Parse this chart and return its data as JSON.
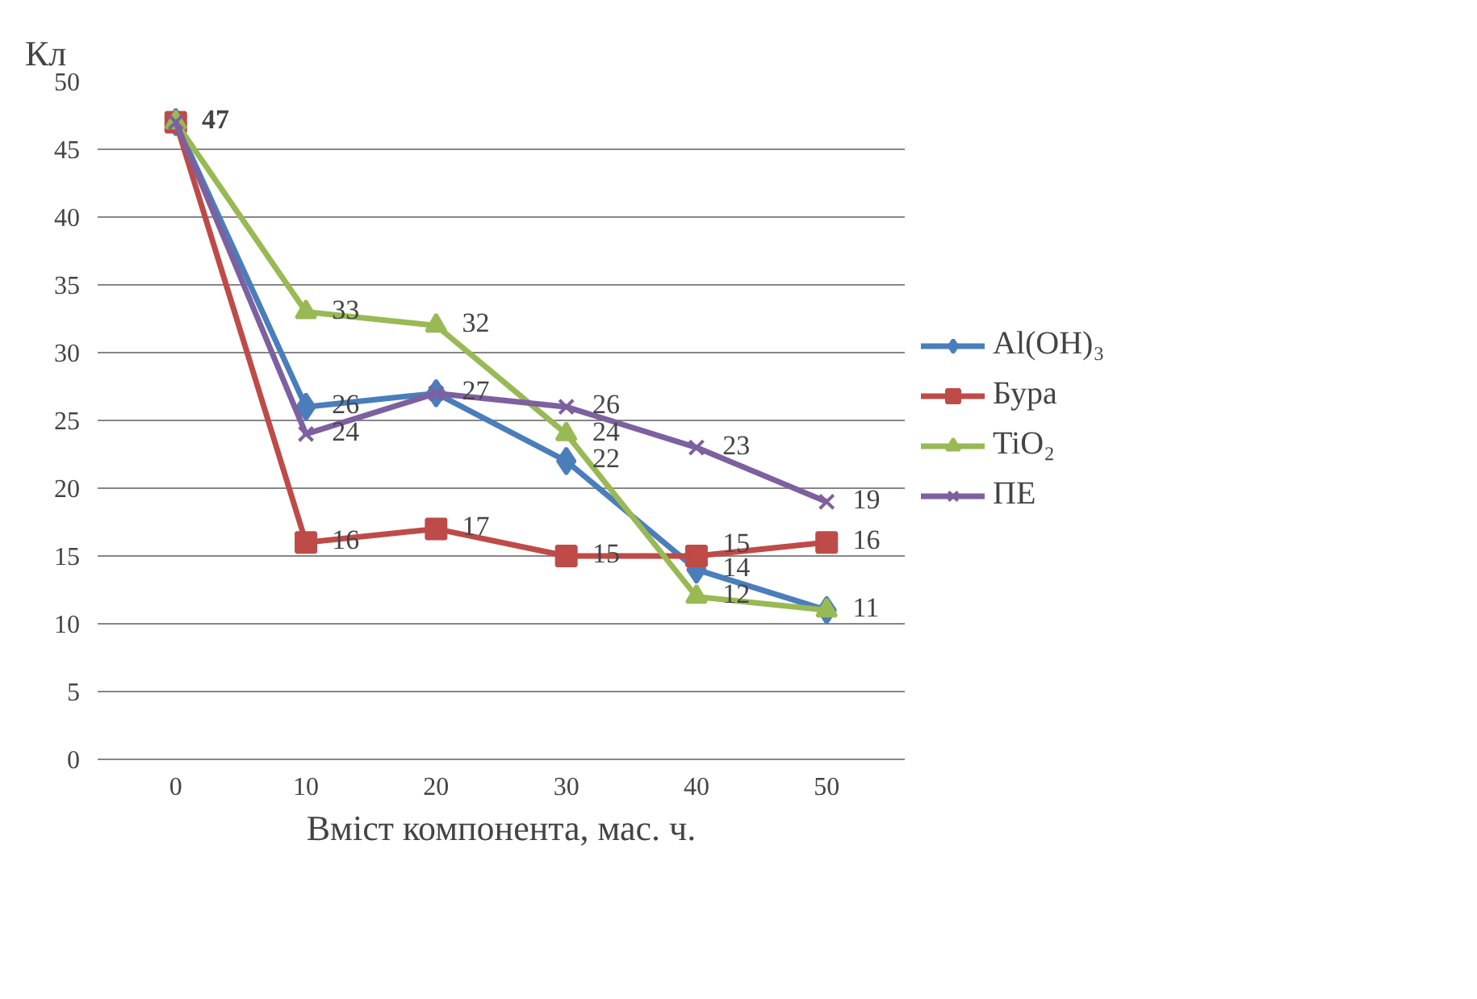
{
  "chart_data": {
    "type": "line",
    "xlabel": "Вміст компонента, мас. ч.",
    "ylabel": "Кл",
    "categories": [
      "0",
      "10",
      "20",
      "30",
      "40",
      "50"
    ],
    "ylim": [
      0,
      50
    ],
    "yticks": [
      0,
      5,
      10,
      15,
      20,
      25,
      30,
      35,
      40,
      45,
      50
    ],
    "grid": "y",
    "legend": "right",
    "series": [
      {
        "name": "Al(OH)₃",
        "color": "#4a7ebb",
        "marker": "diamond",
        "values": [
          47,
          26,
          27,
          22,
          14,
          11
        ],
        "value_labels": [
          "47",
          "26",
          "27",
          "22",
          "14",
          "11"
        ]
      },
      {
        "name": "Бура",
        "color": "#be4b48",
        "marker": "square",
        "values": [
          47,
          16,
          17,
          15,
          15,
          16
        ],
        "value_labels": [
          null,
          "16",
          "17",
          "15",
          "15",
          "16"
        ]
      },
      {
        "name": "TiO₂",
        "color": "#98b954",
        "marker": "triangle",
        "values": [
          47,
          33,
          32,
          24,
          12,
          11
        ],
        "value_labels": [
          null,
          "33",
          "32",
          "24",
          "12",
          null
        ]
      },
      {
        "name": "ПЕ",
        "color": "#7d60a0",
        "marker": "cross",
        "values": [
          47,
          24,
          27,
          26,
          23,
          19
        ],
        "value_labels": [
          null,
          "24",
          null,
          "26",
          "23",
          "19"
        ]
      }
    ]
  }
}
